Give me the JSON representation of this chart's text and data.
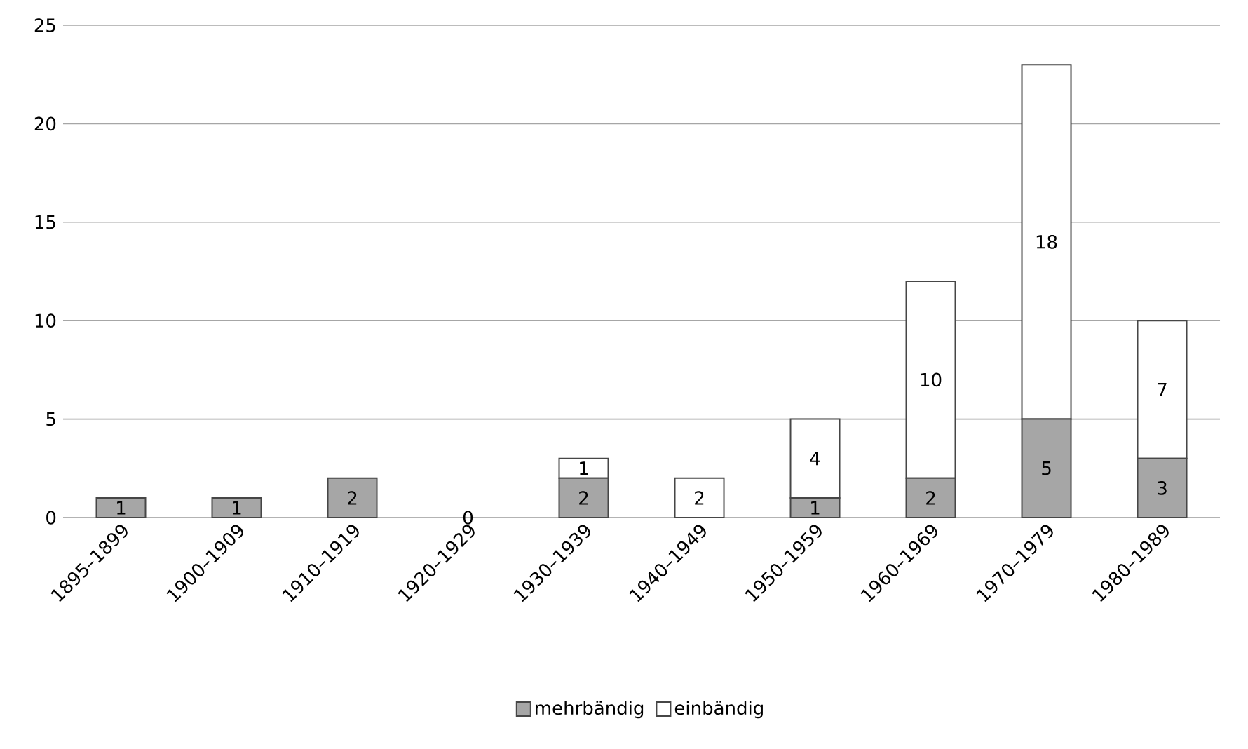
{
  "chart_data": {
    "type": "bar",
    "stacked": true,
    "categories": [
      "1895–1899",
      "1900–1909",
      "1910–1919",
      "1920–1929",
      "1930–1939",
      "1940–1949",
      "1950–1959",
      "1960–1969",
      "1970–1979",
      "1980–1989"
    ],
    "series": [
      {
        "name": "mehrbändig",
        "color": "#a6a6a6",
        "values": [
          1,
          1,
          2,
          0,
          2,
          0,
          1,
          2,
          5,
          3
        ],
        "value_labels": [
          "1",
          "1",
          "2",
          "0",
          "2",
          null,
          "1",
          "2",
          "5",
          "3"
        ]
      },
      {
        "name": "einbändig",
        "color": "#ffffff",
        "values": [
          0,
          0,
          0,
          0,
          1,
          2,
          4,
          10,
          18,
          7
        ],
        "value_labels": [
          null,
          null,
          null,
          null,
          "1",
          "2",
          "4",
          "10",
          "18",
          "7"
        ]
      }
    ],
    "ylim": [
      0,
      25
    ],
    "yticks": [
      0,
      5,
      10,
      15,
      20,
      25
    ],
    "grid": "y",
    "legend": "bottom"
  }
}
